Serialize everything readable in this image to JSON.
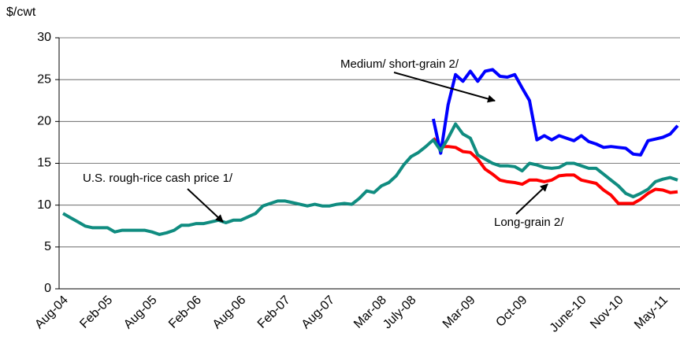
{
  "chart_data": {
    "type": "line",
    "y_label": "$/cwt",
    "categories": [
      "Aug-04",
      null,
      null,
      null,
      null,
      null,
      "Feb-05",
      null,
      null,
      null,
      null,
      null,
      "Aug-05",
      null,
      null,
      null,
      null,
      null,
      "Feb-06",
      null,
      null,
      null,
      null,
      null,
      "Aug-06",
      null,
      null,
      null,
      null,
      null,
      "Feb-07",
      null,
      null,
      null,
      null,
      null,
      "Aug-07",
      null,
      null,
      null,
      null,
      null,
      null,
      "Mar-08",
      null,
      null,
      null,
      "July-08",
      null,
      null,
      null,
      null,
      null,
      null,
      null,
      "Mar-09",
      null,
      null,
      null,
      null,
      null,
      null,
      "Oct-09",
      null,
      null,
      null,
      null,
      null,
      null,
      null,
      "June-10",
      null,
      null,
      null,
      null,
      "Nov-10",
      null,
      null,
      null,
      null,
      null,
      "May-11",
      null,
      null
    ],
    "series": [
      {
        "name": "Long-grain 2/",
        "color": "#ff0000",
        "values": [
          null,
          null,
          null,
          null,
          null,
          null,
          null,
          null,
          null,
          null,
          null,
          null,
          null,
          null,
          null,
          null,
          null,
          null,
          null,
          null,
          null,
          null,
          null,
          null,
          null,
          null,
          null,
          null,
          null,
          null,
          null,
          null,
          null,
          null,
          null,
          null,
          null,
          null,
          null,
          null,
          null,
          null,
          null,
          null,
          null,
          null,
          null,
          null,
          null,
          null,
          18.0,
          17.0,
          17.0,
          16.9,
          16.4,
          16.3,
          15.5,
          14.3,
          13.7,
          13.0,
          12.8,
          12.7,
          12.5,
          13.0,
          13.0,
          12.8,
          13.0,
          13.5,
          13.6,
          13.6,
          13.0,
          12.8,
          12.6,
          11.8,
          11.2,
          10.2,
          10.2,
          10.2,
          10.7,
          11.4,
          11.9,
          11.8,
          11.5,
          11.6
        ]
      },
      {
        "name": "Medium/ short-grain 2/",
        "color": "#0000ff",
        "values": [
          null,
          null,
          null,
          null,
          null,
          null,
          null,
          null,
          null,
          null,
          null,
          null,
          null,
          null,
          null,
          null,
          null,
          null,
          null,
          null,
          null,
          null,
          null,
          null,
          null,
          null,
          null,
          null,
          null,
          null,
          null,
          null,
          null,
          null,
          null,
          null,
          null,
          null,
          null,
          null,
          null,
          null,
          null,
          null,
          null,
          null,
          null,
          null,
          null,
          null,
          20.3,
          16.2,
          22.0,
          25.6,
          24.8,
          26.0,
          24.8,
          26.0,
          26.2,
          25.4,
          25.3,
          25.6,
          24.0,
          22.5,
          17.8,
          18.3,
          17.8,
          18.3,
          18.0,
          17.7,
          18.3,
          17.6,
          17.3,
          16.9,
          17.0,
          16.9,
          16.8,
          16.1,
          16.0,
          17.7,
          17.9,
          18.1,
          18.5,
          19.5
        ]
      },
      {
        "name": "U.S. rough-rice cash price 1/",
        "color": "#108c80",
        "values": [
          9.0,
          8.5,
          8.0,
          7.5,
          7.3,
          7.3,
          7.3,
          6.8,
          7.0,
          7.0,
          7.0,
          7.0,
          6.8,
          6.5,
          6.7,
          7.0,
          7.6,
          7.6,
          7.8,
          7.8,
          8.0,
          8.2,
          7.9,
          8.2,
          8.2,
          8.6,
          9.0,
          9.9,
          10.2,
          10.5,
          10.5,
          10.3,
          10.1,
          9.9,
          10.1,
          9.9,
          9.9,
          10.1,
          10.2,
          10.1,
          10.8,
          11.7,
          11.5,
          12.3,
          12.7,
          13.5,
          14.8,
          15.8,
          16.3,
          17.0,
          17.8,
          16.5,
          18.0,
          19.7,
          18.5,
          18.0,
          16.0,
          15.5,
          15.0,
          14.7,
          14.7,
          14.6,
          14.1,
          15.0,
          14.8,
          14.5,
          14.4,
          14.5,
          15.0,
          15.0,
          14.7,
          14.4,
          14.4,
          13.7,
          13.0,
          12.3,
          11.4,
          11.0,
          11.4,
          11.9,
          12.8,
          13.1,
          13.3,
          13.0
        ]
      }
    ],
    "ylim": [
      0,
      30
    ],
    "yticks": [
      0,
      5,
      10,
      15,
      20,
      25,
      30
    ],
    "grid": true
  }
}
